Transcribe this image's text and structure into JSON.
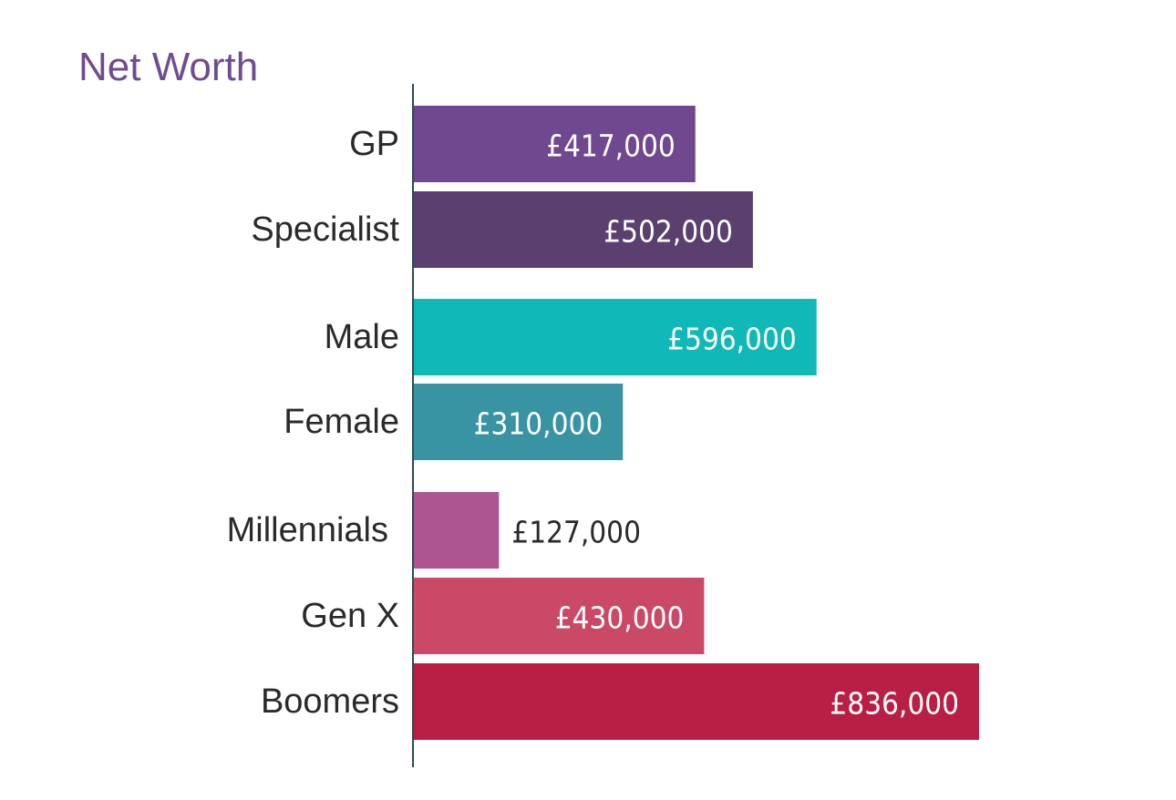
{
  "chart_data": {
    "type": "bar",
    "orientation": "horizontal",
    "title": "Net Worth",
    "categories": [
      "GP",
      "Specialist",
      "Male",
      "Female",
      "Millennials",
      "Gen X",
      "Boomers"
    ],
    "values": [
      417000,
      502000,
      596000,
      310000,
      127000,
      430000,
      836000
    ],
    "value_labels": [
      "£417,000",
      "£502,000",
      "£596,000",
      "£310,000",
      "£127,000",
      "£430,000",
      "£836,000"
    ],
    "groups": [
      {
        "categories": [
          "GP",
          "Specialist"
        ]
      },
      {
        "categories": [
          "Male",
          "Female"
        ]
      },
      {
        "categories": [
          "Millennials",
          "Gen X",
          "Boomers"
        ]
      }
    ],
    "colors": [
      "#704890",
      "#5b3f6e",
      "#10b9b8",
      "#3894a2",
      "#ac5590",
      "#c94967",
      "#b91e44"
    ],
    "xlabel": "",
    "ylabel": "",
    "xlim": [
      0,
      836000
    ],
    "grid": false,
    "legend": "none"
  }
}
